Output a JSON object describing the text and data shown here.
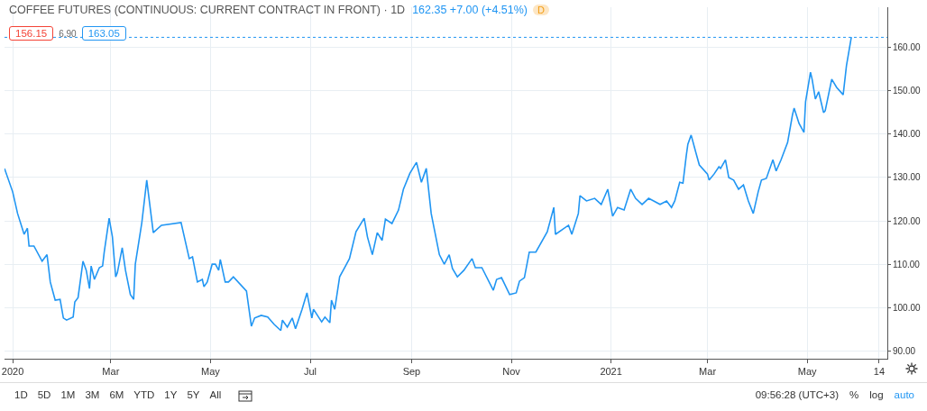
{
  "chart_data": {
    "type": "line",
    "title": "COFFEE FUTURES (CONTINUOUS: CURRENT CONTRACT IN FRONT) · 1D",
    "subtitle": "162.35 +7.00 (+4.51%)",
    "annotations": [
      "156.15",
      "6.90",
      "163.05",
      "D",
      "1D",
      "5D",
      "1M",
      "3M",
      "6M",
      "YTD",
      "1Y",
      "5Y",
      "All",
      "09:56:28 (UTC+3)",
      "%",
      "log",
      "auto"
    ],
    "series": [
      {
        "color": "#2196f3",
        "x": [
          "2019-12-27",
          "2020-01-01",
          "2020-01-04",
          "2020-01-08",
          "2020-01-10",
          "2020-01-11",
          "2020-01-14",
          "2020-01-19",
          "2020-01-22",
          "2020-01-24",
          "2020-01-27",
          "2020-01-30",
          "2020-02-01",
          "2020-02-03",
          "2020-02-07",
          "2020-02-08",
          "2020-02-10",
          "2020-02-13",
          "2020-02-15",
          "2020-02-17",
          "2020-02-18",
          "2020-02-20",
          "2020-02-23",
          "2020-02-25",
          "2020-02-26",
          "2020-02-29",
          "2020-03-02",
          "2020-03-04",
          "2020-03-05",
          "2020-03-08",
          "2020-03-10",
          "2020-03-13",
          "2020-03-15",
          "2020-03-16",
          "2020-03-20",
          "2020-03-23",
          "2020-03-27",
          "2020-04-01",
          "2020-04-13",
          "2020-04-18",
          "2020-04-20",
          "2020-04-23",
          "2020-04-26",
          "2020-04-27",
          "2020-04-29",
          "2020-05-02",
          "2020-05-04",
          "2020-05-06",
          "2020-05-07",
          "2020-05-10",
          "2020-05-12",
          "2020-05-15",
          "2020-05-23",
          "2020-05-26",
          "2020-05-28",
          "2020-06-01",
          "2020-06-05",
          "2020-06-09",
          "2020-06-13",
          "2020-06-14",
          "2020-06-17",
          "2020-06-20",
          "2020-06-22",
          "2020-06-26",
          "2020-06-29",
          "2020-07-02",
          "2020-07-03",
          "2020-07-08",
          "2020-07-10",
          "2020-07-13",
          "2020-07-14",
          "2020-07-16",
          "2020-07-19",
          "2020-07-22",
          "2020-07-25",
          "2020-07-29",
          "2020-08-03",
          "2020-08-05",
          "2020-08-08",
          "2020-08-11",
          "2020-08-14",
          "2020-08-16",
          "2020-08-20",
          "2020-08-24",
          "2020-08-27",
          "2020-08-31",
          "2020-09-04",
          "2020-09-07",
          "2020-09-10",
          "2020-09-13",
          "2020-09-18",
          "2020-09-21",
          "2020-09-24",
          "2020-09-26",
          "2020-09-29",
          "2020-10-03",
          "2020-10-08",
          "2020-10-10",
          "2020-10-14",
          "2020-10-21",
          "2020-10-23",
          "2020-10-26",
          "2020-10-31",
          "2020-11-04",
          "2020-11-06",
          "2020-11-09",
          "2020-11-12",
          "2020-11-16",
          "2020-11-23",
          "2020-11-27",
          "2020-11-28",
          "2020-12-06",
          "2020-12-08",
          "2020-12-12",
          "2020-12-13",
          "2020-12-17",
          "2020-12-22",
          "2020-12-26",
          "2020-12-30",
          "2021-01-02",
          "2021-01-05",
          "2021-01-09",
          "2021-01-13",
          "2021-01-16",
          "2021-01-20",
          "2021-01-24",
          "2021-01-31",
          "2021-02-04",
          "2021-02-07",
          "2021-02-09",
          "2021-02-12",
          "2021-02-14",
          "2021-02-16",
          "2021-02-17",
          "2021-02-19",
          "2021-02-22",
          "2021-02-24",
          "2021-03-01",
          "2021-03-02",
          "2021-03-05",
          "2021-03-08",
          "2021-03-09",
          "2021-03-12",
          "2021-03-14",
          "2021-03-17",
          "2021-03-20",
          "2021-03-23",
          "2021-03-26",
          "2021-03-29",
          "2021-04-01",
          "2021-04-03",
          "2021-04-06",
          "2021-04-10",
          "2021-04-12",
          "2021-04-15",
          "2021-04-19",
          "2021-04-22",
          "2021-04-23",
          "2021-04-26",
          "2021-04-29",
          "2021-04-30",
          "2021-05-03",
          "2021-05-04",
          "2021-05-06",
          "2021-05-08",
          "2021-05-11",
          "2021-05-12",
          "2021-05-16",
          "2021-05-19",
          "2021-05-23",
          "2021-05-25",
          "2021-05-28"
        ],
        "values": [
          132.1,
          126.7,
          121.7,
          116.9,
          118.3,
          114.2,
          114.2,
          110.7,
          112.2,
          105.9,
          101.7,
          101.9,
          97.6,
          97.1,
          97.8,
          101.3,
          102.3,
          110.7,
          108.6,
          104.4,
          109.6,
          106.5,
          109.2,
          109.6,
          112.8,
          120.6,
          116.3,
          107.1,
          108.0,
          113.8,
          108.6,
          103.0,
          101.9,
          110.0,
          119.6,
          129.4,
          117.3,
          119.0,
          119.6,
          111.3,
          111.7,
          105.9,
          106.5,
          104.8,
          105.9,
          110.0,
          110.0,
          108.6,
          111.1,
          105.9,
          105.9,
          107.1,
          103.8,
          95.7,
          97.6,
          98.2,
          97.8,
          96.1,
          94.7,
          97.1,
          95.5,
          97.6,
          95.1,
          99.6,
          103.4,
          97.6,
          99.6,
          96.7,
          97.8,
          96.5,
          101.7,
          99.6,
          107.1,
          109.2,
          111.3,
          117.5,
          120.6,
          116.3,
          112.2,
          117.3,
          115.5,
          120.4,
          119.4,
          122.5,
          127.3,
          131.0,
          133.5,
          128.9,
          132.1,
          121.7,
          112.2,
          110.0,
          112.2,
          109.0,
          107.1,
          108.6,
          111.3,
          109.2,
          109.2,
          104.0,
          106.5,
          106.9,
          103.0,
          103.4,
          106.1,
          106.9,
          112.8,
          112.8,
          117.5,
          123.1,
          116.9,
          119.0,
          116.9,
          121.7,
          125.8,
          124.6,
          125.2,
          123.8,
          127.3,
          121.1,
          123.1,
          122.5,
          127.3,
          125.2,
          123.8,
          125.2,
          123.8,
          124.6,
          123.1,
          124.6,
          128.9,
          128.7,
          135.0,
          137.7,
          139.8,
          135.6,
          132.9,
          130.8,
          129.4,
          130.8,
          132.5,
          132.1,
          134.1,
          130.0,
          129.4,
          127.3,
          128.3,
          124.6,
          121.7,
          126.7,
          129.4,
          129.8,
          134.1,
          131.5,
          134.1,
          138.1,
          144.5,
          146.0,
          142.5,
          140.4,
          147.5,
          154.3,
          152.7,
          148.1,
          149.8,
          145.0,
          145.4,
          152.7,
          150.8,
          149.1,
          155.8,
          162.4
        ]
      }
    ],
    "xlim": [
      "2019-12-27",
      "2021-06-19"
    ],
    "xticks": [
      {
        "value": "2020-01-01",
        "label": "2020"
      },
      {
        "value": "2020-03-01",
        "label": "Mar"
      },
      {
        "value": "2020-05-01",
        "label": "May"
      },
      {
        "value": "2020-07-01",
        "label": "Jul"
      },
      {
        "value": "2020-09-01",
        "label": "Sep"
      },
      {
        "value": "2020-11-01",
        "label": "Nov"
      },
      {
        "value": "2021-01-01",
        "label": "2021"
      },
      {
        "value": "2021-03-01",
        "label": "Mar"
      },
      {
        "value": "2021-05-01",
        "label": "May"
      },
      {
        "value": "2021-06-14",
        "label": "14"
      }
    ],
    "ylim": [
      88.2,
      169.3
    ],
    "yticks": [
      {
        "value": 90,
        "label": "90.00"
      },
      {
        "value": 100,
        "label": "100.00"
      },
      {
        "value": 110,
        "label": "110.00"
      },
      {
        "value": 120,
        "label": "120.00"
      },
      {
        "value": 130,
        "label": "130.00"
      },
      {
        "value": 140,
        "label": "140.00"
      },
      {
        "value": 150,
        "label": "150.00"
      },
      {
        "value": 160,
        "label": "160.00"
      }
    ],
    "ref_lines": [
      {
        "axis": "y",
        "value": 162.35,
        "color": "#2196f3",
        "line_style": "dotted"
      }
    ],
    "grid": true,
    "marker": "none",
    "line_style": "solid"
  }
}
